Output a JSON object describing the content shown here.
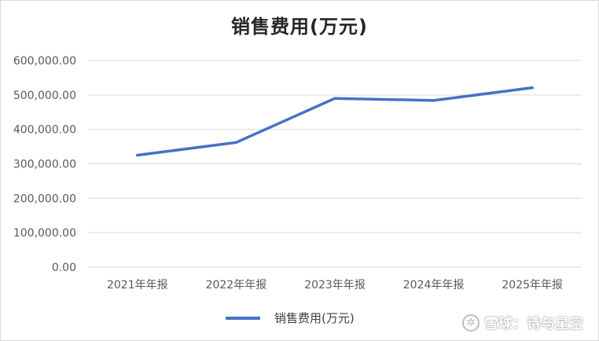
{
  "chart_data": {
    "type": "line",
    "title": "销售费用(万元)",
    "categories": [
      "2021年年报",
      "2022年年报",
      "2023年年报",
      "2024年年报",
      "2025年年报"
    ],
    "series": [
      {
        "name": "销售费用(万元)",
        "values": [
          325000,
          362000,
          490000,
          484000,
          521000
        ],
        "color": "#4472c4"
      }
    ],
    "ylim": [
      0,
      600000
    ],
    "yticks": [
      "0.00",
      "100,000.00",
      "200,000.00",
      "300,000.00",
      "400,000.00",
      "500,000.00",
      "600,000.00"
    ],
    "xlabel": "",
    "ylabel": "",
    "grid": true,
    "legend_position": "bottom"
  },
  "watermark": {
    "text": "雪球：诗与星空",
    "icon": "xueqiu-logo-icon"
  }
}
